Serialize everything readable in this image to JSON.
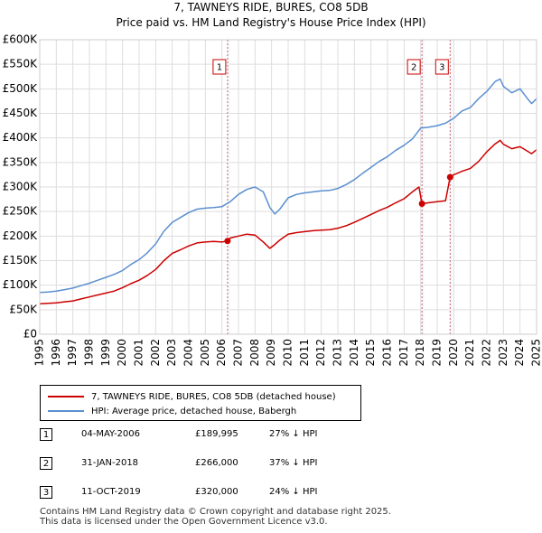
{
  "chart_data": {
    "type": "line",
    "title": "7, TAWNEYS RIDE, BURES, CO8 5DB",
    "subtitle": "Price paid vs. HM Land Registry's House Price Index (HPI)",
    "ylim": [
      0,
      600000
    ],
    "xlim": [
      1995,
      2025
    ],
    "y_ticks": [
      0,
      50000,
      100000,
      150000,
      200000,
      250000,
      300000,
      350000,
      400000,
      450000,
      500000,
      550000,
      600000
    ],
    "y_tick_labels": [
      "£0",
      "£50K",
      "£100K",
      "£150K",
      "£200K",
      "£250K",
      "£300K",
      "£350K",
      "£400K",
      "£450K",
      "£500K",
      "£550K",
      "£600K"
    ],
    "x_ticks": [
      1995,
      1996,
      1997,
      1998,
      1999,
      2000,
      2001,
      2002,
      2003,
      2004,
      2005,
      2006,
      2007,
      2008,
      2009,
      2010,
      2011,
      2012,
      2013,
      2014,
      2015,
      2016,
      2017,
      2018,
      2019,
      2020,
      2021,
      2022,
      2023,
      2024,
      2025
    ],
    "grid": true,
    "series": [
      {
        "name": "7, TAWNEYS RIDE, BURES, CO8 5DB (detached house)",
        "color": "#cc0000",
        "x": [
          1995.0,
          1995.5,
          1996.0,
          1996.5,
          1997.0,
          1997.5,
          1998.0,
          1998.5,
          1999.0,
          1999.5,
          2000.0,
          2000.5,
          2001.0,
          2001.5,
          2002.0,
          2002.5,
          2003.0,
          2003.5,
          2004.0,
          2004.5,
          2005.0,
          2005.5,
          2006.0,
          2006.34,
          2006.5,
          2007.0,
          2007.5,
          2008.0,
          2008.5,
          2008.9,
          2009.2,
          2009.5,
          2010.0,
          2010.5,
          2011.0,
          2011.5,
          2012.0,
          2012.5,
          2013.0,
          2013.5,
          2014.0,
          2014.5,
          2015.0,
          2015.5,
          2016.0,
          2016.5,
          2017.0,
          2017.5,
          2017.9,
          2018.08,
          2018.5,
          2019.0,
          2019.5,
          2019.78,
          2020.0,
          2020.5,
          2021.0,
          2021.5,
          2022.0,
          2022.5,
          2022.8,
          2023.0,
          2023.5,
          2024.0,
          2024.5,
          2024.7,
          2025.0
        ],
        "values": [
          62000,
          63000,
          64000,
          66000,
          68000,
          72000,
          76000,
          80000,
          84000,
          88000,
          95000,
          103000,
          110000,
          120000,
          132000,
          150000,
          165000,
          172000,
          180000,
          186000,
          188000,
          189000,
          188000,
          189995,
          196000,
          200000,
          204000,
          202000,
          188000,
          175000,
          183000,
          192000,
          204000,
          207000,
          209000,
          211000,
          212000,
          213000,
          216000,
          221000,
          228000,
          236000,
          244000,
          252000,
          259000,
          268000,
          276000,
          290000,
          300000,
          266000,
          268000,
          270000,
          272000,
          320000,
          325000,
          332000,
          338000,
          352000,
          372000,
          388000,
          395000,
          387000,
          378000,
          382000,
          372000,
          368000,
          376000
        ]
      },
      {
        "name": "HPI: Average price, detached house, Babergh",
        "color": "#5b8fd0",
        "x": [
          1995.0,
          1995.5,
          1996.0,
          1996.5,
          1997.0,
          1997.5,
          1998.0,
          1998.5,
          1999.0,
          1999.5,
          2000.0,
          2000.5,
          2001.0,
          2001.5,
          2002.0,
          2002.5,
          2003.0,
          2003.5,
          2004.0,
          2004.5,
          2005.0,
          2005.5,
          2006.0,
          2006.5,
          2007.0,
          2007.5,
          2008.0,
          2008.5,
          2008.9,
          2009.2,
          2009.5,
          2010.0,
          2010.5,
          2011.0,
          2011.5,
          2012.0,
          2012.5,
          2013.0,
          2013.5,
          2014.0,
          2014.5,
          2015.0,
          2015.5,
          2016.0,
          2016.5,
          2017.0,
          2017.5,
          2018.0,
          2018.5,
          2019.0,
          2019.5,
          2020.0,
          2020.5,
          2021.0,
          2021.5,
          2022.0,
          2022.5,
          2022.8,
          2023.0,
          2023.5,
          2024.0,
          2024.5,
          2024.7,
          2025.0
        ],
        "values": [
          85000,
          86000,
          88000,
          91000,
          94000,
          99000,
          104000,
          110000,
          116000,
          122000,
          130000,
          142000,
          152000,
          166000,
          184000,
          210000,
          228000,
          238000,
          248000,
          255000,
          257000,
          258000,
          260000,
          270000,
          285000,
          295000,
          300000,
          290000,
          258000,
          245000,
          255000,
          278000,
          285000,
          288000,
          290000,
          292000,
          293000,
          297000,
          305000,
          315000,
          328000,
          340000,
          352000,
          362000,
          375000,
          385000,
          398000,
          420000,
          422000,
          425000,
          430000,
          440000,
          455000,
          462000,
          480000,
          495000,
          515000,
          520000,
          505000,
          492000,
          500000,
          478000,
          470000,
          480000
        ]
      }
    ],
    "markers": [
      {
        "label": "1",
        "x": 2006.34,
        "y": 189995
      },
      {
        "label": "2",
        "x": 2018.08,
        "y": 266000
      },
      {
        "label": "3",
        "x": 2019.78,
        "y": 320000
      }
    ]
  },
  "legend": {
    "items": [
      {
        "label": "7, TAWNEYS RIDE, BURES, CO8 5DB (detached house)",
        "color": "#cc0000"
      },
      {
        "label": "HPI: Average price, detached house, Babergh",
        "color": "#5b8fd0"
      }
    ]
  },
  "sales": [
    {
      "num": "1",
      "date": "04-MAY-2006",
      "price": "£189,995",
      "hpi": "27% ↓ HPI"
    },
    {
      "num": "2",
      "date": "31-JAN-2018",
      "price": "£266,000",
      "hpi": "37% ↓ HPI"
    },
    {
      "num": "3",
      "date": "11-OCT-2019",
      "price": "£320,000",
      "hpi": "24% ↓ HPI"
    }
  ],
  "footer": {
    "line1": "Contains HM Land Registry data © Crown copyright and database right 2025.",
    "line2": "This data is licensed under the Open Government Licence v3.0."
  }
}
